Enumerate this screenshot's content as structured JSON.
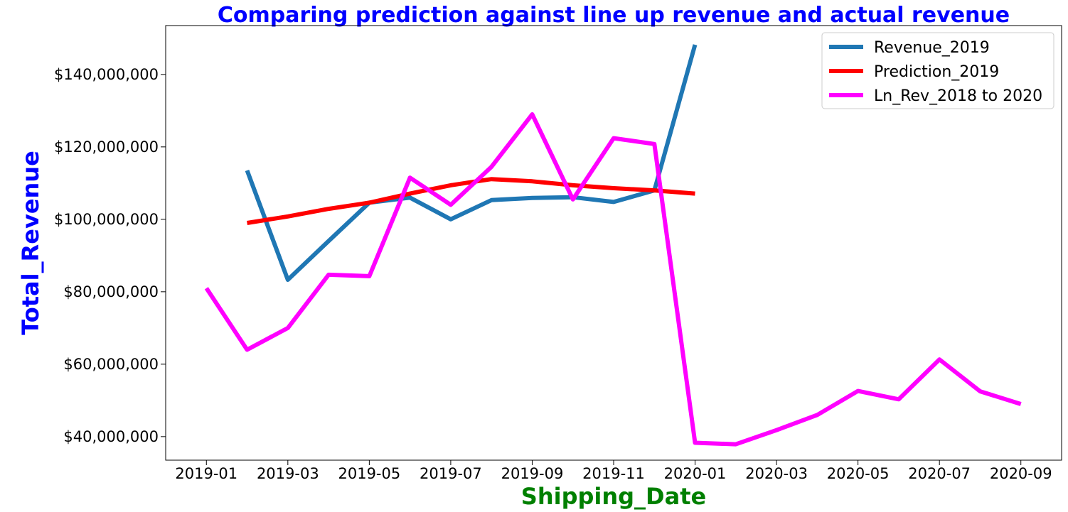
{
  "chart_data": {
    "type": "line",
    "title": "Comparing prediction against line up revenue and actual revenue",
    "xlabel": "Shipping_Date",
    "ylabel": "Total_Revenue",
    "x_tick_labels": [
      "2019-01",
      "2019-03",
      "2019-05",
      "2019-07",
      "2019-09",
      "2019-11",
      "2020-01",
      "2020-03",
      "2020-05",
      "2020-07",
      "2020-09"
    ],
    "y_tick_labels": [
      "$40,000,000",
      "$60,000,000",
      "$80,000,000",
      "$100,000,000",
      "$120,000,000",
      "$140,000,000"
    ],
    "y_tick_values": [
      40000000,
      60000000,
      80000000,
      100000000,
      120000000,
      140000000
    ],
    "xlim": [
      "2018-12-01",
      "2020-10-01"
    ],
    "ylim": [
      33500000,
      153500000
    ],
    "grid": false,
    "legend_position": "top-right",
    "colors": {
      "title": "#0000ff",
      "xlabel": "#008000",
      "ylabel": "#0000ff"
    },
    "series": [
      {
        "name": "Revenue_2019",
        "color": "#1f77b4",
        "x": [
          "2019-02",
          "2019-03",
          "2019-04",
          "2019-05",
          "2019-06",
          "2019-07",
          "2019-08",
          "2019-09",
          "2019-10",
          "2019-11",
          "2019-12",
          "2020-01"
        ],
        "values": [
          113500000,
          83300000,
          94000000,
          104600000,
          106000000,
          100000000,
          105300000,
          105900000,
          106100000,
          104800000,
          108000000,
          148200000
        ]
      },
      {
        "name": "Prediction_2019",
        "color": "#ff0000",
        "x": [
          "2019-02",
          "2019-03",
          "2019-04",
          "2019-05",
          "2019-06",
          "2019-07",
          "2019-08",
          "2019-09",
          "2019-10",
          "2019-11",
          "2019-12",
          "2020-01"
        ],
        "values": [
          99000000,
          100800000,
          102900000,
          104600000,
          107100000,
          109400000,
          111100000,
          110500000,
          109400000,
          108600000,
          108000000,
          107100000
        ]
      },
      {
        "name": "Ln_Rev_2018 to 2020",
        "color": "#ff00ff",
        "x": [
          "2019-01",
          "2019-02",
          "2019-03",
          "2019-04",
          "2019-05",
          "2019-06",
          "2019-07",
          "2019-08",
          "2019-09",
          "2019-10",
          "2019-11",
          "2019-12",
          "2020-01",
          "2020-02",
          "2020-03",
          "2020-04",
          "2020-05",
          "2020-06",
          "2020-07",
          "2020-08",
          "2020-09"
        ],
        "values": [
          81000000,
          64000000,
          70000000,
          84700000,
          84300000,
          111500000,
          104000000,
          114500000,
          129000000,
          105500000,
          122400000,
          120800000,
          38300000,
          37900000,
          41800000,
          46000000,
          52600000,
          50300000,
          61300000,
          52500000,
          49000000
        ]
      }
    ]
  }
}
